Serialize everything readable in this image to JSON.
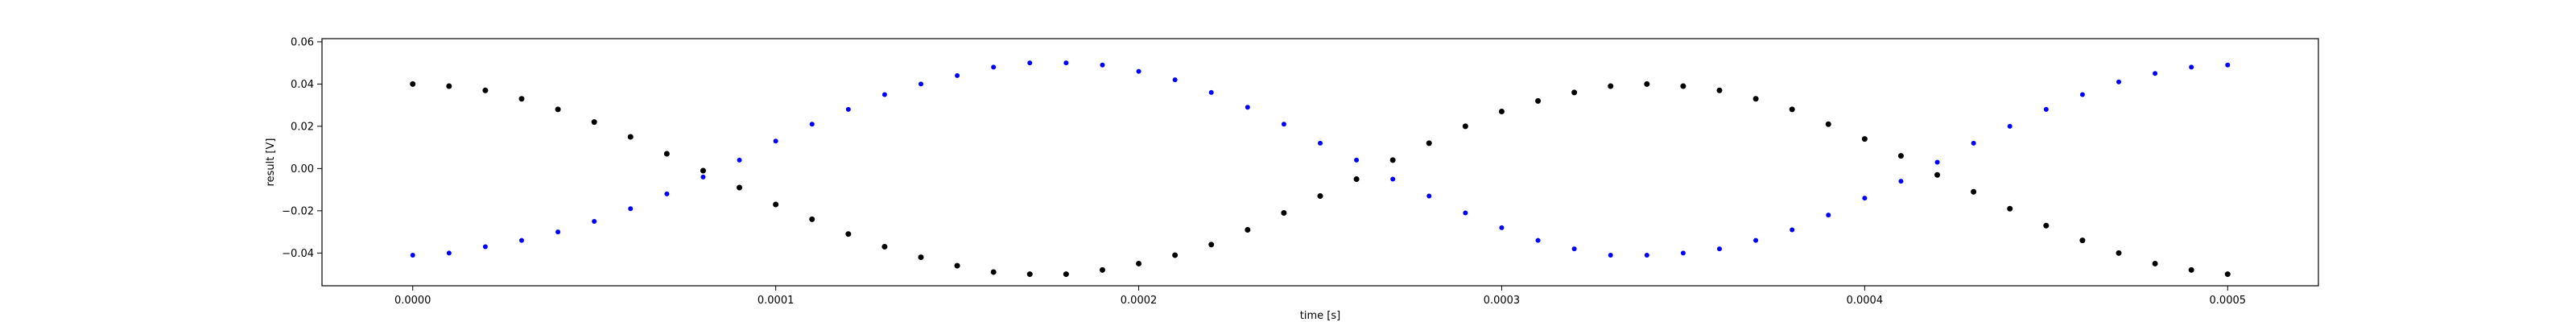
{
  "chart_data": {
    "type": "scatter",
    "title": "",
    "xlabel": "time [s]",
    "ylabel": "result [V]",
    "xlim": [
      -2.5e-05,
      0.000525
    ],
    "ylim": [
      -0.0555,
      0.0615
    ],
    "grid": false,
    "xticks": [
      0.0,
      0.0001,
      0.0002,
      0.0003,
      0.0004,
      0.0005
    ],
    "xtick_labels": [
      "0.0000",
      "0.0001",
      "0.0002",
      "0.0003",
      "0.0004",
      "0.0005"
    ],
    "yticks": [
      -0.04,
      -0.02,
      0.0,
      0.02,
      0.04,
      0.06
    ],
    "ytick_labels": [
      "−0.04",
      "−0.02",
      "0.00",
      "0.02",
      "0.04",
      "0.06"
    ],
    "series": [
      {
        "color": "#0000ff",
        "marker": "dot",
        "x": [
          0.0,
          1e-05,
          2e-05,
          3e-05,
          4e-05,
          5e-05,
          6e-05,
          7e-05,
          8e-05,
          9e-05,
          0.0001,
          0.00011,
          0.00012,
          0.00013,
          0.00014,
          0.00015,
          0.00016,
          0.00017,
          0.00018,
          0.00019,
          0.0002,
          0.00021,
          0.00022,
          0.00023,
          0.00024,
          0.00025,
          0.00026,
          0.00027,
          0.00028,
          0.00029,
          0.0003,
          0.00031,
          0.00032,
          0.00033,
          0.00034,
          0.00035,
          0.00036,
          0.00037,
          0.00038,
          0.00039,
          0.0004,
          0.00041,
          0.00042,
          0.00043,
          0.00044,
          0.00045,
          0.00046,
          0.00047,
          0.00048,
          0.00049,
          0.0005
        ],
        "y": [
          -0.041,
          -0.04,
          -0.037,
          -0.034,
          -0.03,
          -0.025,
          -0.019,
          -0.012,
          -0.004,
          0.004,
          0.013,
          0.021,
          0.028,
          0.035,
          0.04,
          0.044,
          0.048,
          0.05,
          0.05,
          0.049,
          0.046,
          0.042,
          0.036,
          0.029,
          0.021,
          0.012,
          0.004,
          -0.005,
          -0.013,
          -0.021,
          -0.028,
          -0.034,
          -0.038,
          -0.041,
          -0.041,
          -0.04,
          -0.038,
          -0.034,
          -0.029,
          -0.022,
          -0.014,
          -0.006,
          0.003,
          0.012,
          0.02,
          0.028,
          0.035,
          0.041,
          0.045,
          0.048,
          0.049
        ]
      },
      {
        "color": "#000000",
        "marker": "dot",
        "x": [
          0.0,
          1e-05,
          2e-05,
          3e-05,
          4e-05,
          5e-05,
          6e-05,
          7e-05,
          8e-05,
          9e-05,
          0.0001,
          0.00011,
          0.00012,
          0.00013,
          0.00014,
          0.00015,
          0.00016,
          0.00017,
          0.00018,
          0.00019,
          0.0002,
          0.00021,
          0.00022,
          0.00023,
          0.00024,
          0.00025,
          0.00026,
          0.00027,
          0.00028,
          0.00029,
          0.0003,
          0.00031,
          0.00032,
          0.00033,
          0.00034,
          0.00035,
          0.00036,
          0.00037,
          0.00038,
          0.00039,
          0.0004,
          0.00041,
          0.00042,
          0.00043,
          0.00044,
          0.00045,
          0.00046,
          0.00047,
          0.00048,
          0.00049,
          0.0005
        ],
        "y": [
          0.04,
          0.039,
          0.037,
          0.033,
          0.028,
          0.022,
          0.015,
          0.007,
          -0.001,
          -0.009,
          -0.017,
          -0.024,
          -0.031,
          -0.037,
          -0.042,
          -0.046,
          -0.049,
          -0.05,
          -0.05,
          -0.048,
          -0.045,
          -0.041,
          -0.036,
          -0.029,
          -0.021,
          -0.013,
          -0.005,
          0.004,
          0.012,
          0.02,
          0.027,
          0.032,
          0.036,
          0.039,
          0.04,
          0.039,
          0.037,
          0.033,
          0.028,
          0.021,
          0.014,
          0.006,
          -0.003,
          -0.011,
          -0.019,
          -0.027,
          -0.034,
          -0.04,
          -0.045,
          -0.048,
          -0.05
        ]
      }
    ]
  }
}
